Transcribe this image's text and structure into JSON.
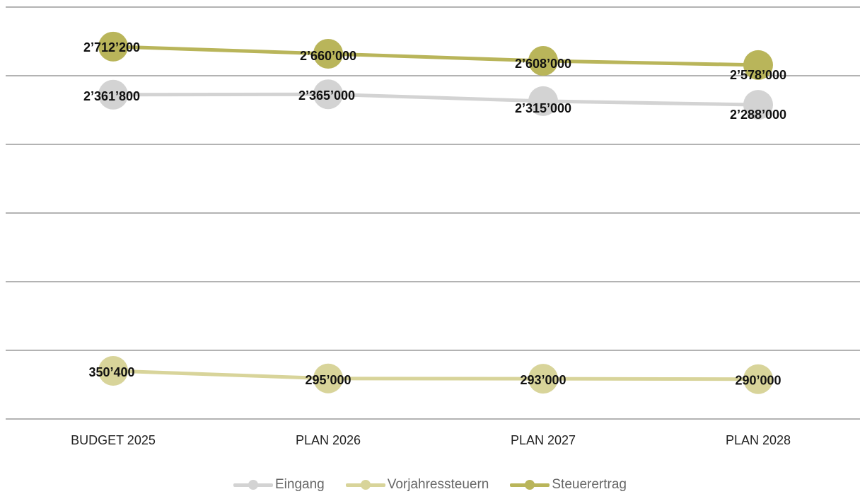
{
  "chart_data": {
    "type": "line",
    "categories": [
      "BUDGET 2025",
      "PLAN 2026",
      "PLAN 2027",
      "PLAN 2028"
    ],
    "series": [
      {
        "name": "Eingang",
        "values": [
          2361800,
          2365000,
          2315000,
          2288000
        ],
        "labels": [
          "2’361’800",
          "2’365’000",
          "2’315’000",
          "2’288’000"
        ],
        "color": "#d3d3d3"
      },
      {
        "name": "Vorjahressteuern",
        "values": [
          350400,
          295000,
          293000,
          290000
        ],
        "labels": [
          "350’400",
          "295’000",
          "293’000",
          "290’000"
        ],
        "color": "#d8d49a"
      },
      {
        "name": "Steuerertrag",
        "values": [
          2712200,
          2660000,
          2608000,
          2578000
        ],
        "labels": [
          "2’712’200",
          "2’660’000",
          "2’608’000",
          "2’578’000"
        ],
        "color": "#b9b55a"
      }
    ],
    "ylim": [
      0,
      3000000
    ],
    "grid": true,
    "legend": "bottom-center",
    "title": "",
    "xlabel": "",
    "ylabel": ""
  }
}
